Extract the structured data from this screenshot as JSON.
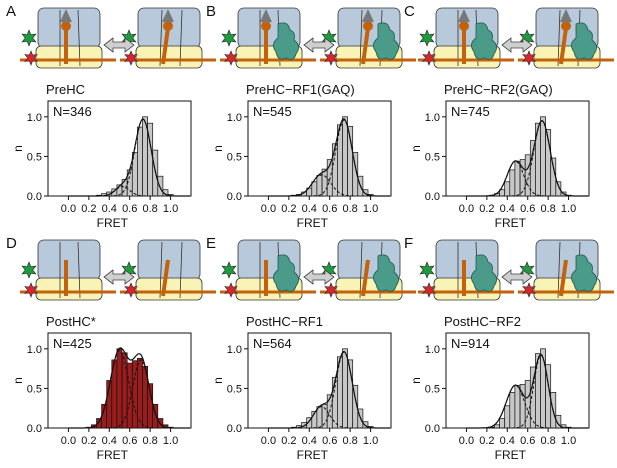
{
  "colors": {
    "subunit_blue": "#b7c9db",
    "subunit_yellow": "#f9f3b5",
    "trna_orange": "#c4620c",
    "peptide_gray": "#777777",
    "factor_teal": "#4a9b8a",
    "star_green": "#1e9a3f",
    "star_red": "#d8262b",
    "bar_gray": "#c8c8c8",
    "bar_red": "#9a1c1c"
  },
  "chart_data": [
    {
      "type": "bar",
      "panel": "A",
      "title": "PreHC",
      "schematic": {
        "peptide": true,
        "factor": false
      },
      "annotation": "N=346",
      "xlabel": "FRET",
      "ylabel": "n",
      "xlim": [
        -0.2,
        1.2
      ],
      "ylim": [
        0,
        1.2
      ],
      "xticks": [
        "0.0",
        "0.2",
        "0.4",
        "0.6",
        "0.8",
        "1.0"
      ],
      "yticks": [
        "0.0",
        "0.5",
        "1.0"
      ],
      "bar_color": "gray",
      "bins": [
        0.1,
        0.15,
        0.2,
        0.25,
        0.3,
        0.35,
        0.4,
        0.45,
        0.5,
        0.55,
        0.6,
        0.65,
        0.7,
        0.75,
        0.8,
        0.85,
        0.9,
        0.95,
        1.0,
        1.05
      ],
      "values": [
        0.0,
        0.0,
        0.0,
        0.0,
        0.01,
        0.03,
        0.05,
        0.09,
        0.14,
        0.21,
        0.33,
        0.55,
        0.87,
        1.0,
        0.92,
        0.58,
        0.25,
        0.08,
        0.02,
        0.0
      ],
      "fits": [
        {
          "mean": 0.53,
          "sd": 0.07,
          "amp": 0.12
        },
        {
          "mean": 0.73,
          "sd": 0.08,
          "amp": 0.97
        }
      ]
    },
    {
      "type": "bar",
      "panel": "B",
      "title": "PreHC−RF1(GAQ)",
      "schematic": {
        "peptide": true,
        "factor": true
      },
      "annotation": "N=545",
      "xlabel": "FRET",
      "ylabel": "n",
      "xlim": [
        -0.2,
        1.2
      ],
      "ylim": [
        0,
        1.2
      ],
      "xticks": [
        "0.0",
        "0.2",
        "0.4",
        "0.6",
        "0.8",
        "1.0"
      ],
      "yticks": [
        "0.0",
        "0.5",
        "1.0"
      ],
      "bar_color": "gray",
      "bins": [
        0.1,
        0.15,
        0.2,
        0.25,
        0.3,
        0.35,
        0.4,
        0.45,
        0.5,
        0.55,
        0.6,
        0.65,
        0.7,
        0.75,
        0.8,
        0.85,
        0.9,
        0.95,
        1.0,
        1.05
      ],
      "values": [
        0.0,
        0.0,
        0.0,
        0.01,
        0.02,
        0.05,
        0.1,
        0.18,
        0.26,
        0.34,
        0.46,
        0.66,
        0.9,
        1.0,
        0.88,
        0.55,
        0.25,
        0.08,
        0.02,
        0.0
      ],
      "fits": [
        {
          "mean": 0.52,
          "sd": 0.09,
          "amp": 0.27
        },
        {
          "mean": 0.74,
          "sd": 0.08,
          "amp": 0.96
        }
      ]
    },
    {
      "type": "bar",
      "panel": "C",
      "title": "PreHC−RF2(GAQ)",
      "schematic": {
        "peptide": true,
        "factor": true
      },
      "annotation": "N=745",
      "xlabel": "FRET",
      "ylabel": "n",
      "xlim": [
        -0.2,
        1.2
      ],
      "ylim": [
        0,
        1.2
      ],
      "xticks": [
        "0.0",
        "0.2",
        "0.4",
        "0.6",
        "0.8",
        "1.0"
      ],
      "yticks": [
        "0.0",
        "0.5",
        "1.0"
      ],
      "bar_color": "gray",
      "bins": [
        0.1,
        0.15,
        0.2,
        0.25,
        0.3,
        0.35,
        0.4,
        0.45,
        0.5,
        0.55,
        0.6,
        0.65,
        0.7,
        0.75,
        0.8,
        0.85,
        0.9,
        0.95,
        1.0,
        1.05
      ],
      "values": [
        0.0,
        0.0,
        0.0,
        0.01,
        0.03,
        0.08,
        0.18,
        0.33,
        0.44,
        0.46,
        0.52,
        0.7,
        0.92,
        1.0,
        0.84,
        0.48,
        0.18,
        0.05,
        0.01,
        0.0
      ],
      "fits": [
        {
          "mean": 0.48,
          "sd": 0.08,
          "amp": 0.44
        },
        {
          "mean": 0.74,
          "sd": 0.08,
          "amp": 0.95
        }
      ]
    },
    {
      "type": "bar",
      "panel": "D",
      "title": "PostHC*",
      "schematic": {
        "peptide": false,
        "factor": false
      },
      "annotation": "N=425",
      "xlabel": "FRET",
      "ylabel": "n",
      "xlim": [
        -0.2,
        1.2
      ],
      "ylim": [
        0,
        1.2
      ],
      "xticks": [
        "0.0",
        "0.2",
        "0.4",
        "0.6",
        "0.8",
        "1.0"
      ],
      "yticks": [
        "0.0",
        "0.5",
        "1.0"
      ],
      "bar_color": "red",
      "bins": [
        0.1,
        0.15,
        0.2,
        0.25,
        0.3,
        0.35,
        0.4,
        0.45,
        0.5,
        0.55,
        0.6,
        0.65,
        0.7,
        0.75,
        0.8,
        0.85,
        0.9,
        0.95,
        1.0,
        1.05
      ],
      "values": [
        0.0,
        0.0,
        0.01,
        0.04,
        0.12,
        0.3,
        0.6,
        0.86,
        1.0,
        0.95,
        0.82,
        0.85,
        0.88,
        0.78,
        0.56,
        0.3,
        0.12,
        0.04,
        0.01,
        0.0
      ],
      "fits": [
        {
          "mean": 0.5,
          "sd": 0.09,
          "amp": 0.98
        },
        {
          "mean": 0.71,
          "sd": 0.08,
          "amp": 0.86
        }
      ]
    },
    {
      "type": "bar",
      "panel": "E",
      "title": "PostHC−RF1",
      "schematic": {
        "peptide": false,
        "factor": true
      },
      "annotation": "N=564",
      "xlabel": "FRET",
      "ylabel": "n",
      "xlim": [
        -0.2,
        1.2
      ],
      "ylim": [
        0,
        1.2
      ],
      "xticks": [
        "0.0",
        "0.2",
        "0.4",
        "0.6",
        "0.8",
        "1.0"
      ],
      "yticks": [
        "0.0",
        "0.5",
        "1.0"
      ],
      "bar_color": "gray",
      "bins": [
        0.1,
        0.15,
        0.2,
        0.25,
        0.3,
        0.35,
        0.4,
        0.45,
        0.5,
        0.55,
        0.6,
        0.65,
        0.7,
        0.75,
        0.8,
        0.85,
        0.9,
        0.95,
        1.0,
        1.05
      ],
      "values": [
        0.0,
        0.0,
        0.0,
        0.01,
        0.03,
        0.07,
        0.13,
        0.21,
        0.27,
        0.3,
        0.42,
        0.64,
        0.9,
        1.0,
        0.86,
        0.54,
        0.24,
        0.08,
        0.02,
        0.0
      ],
      "fits": [
        {
          "mean": 0.52,
          "sd": 0.08,
          "amp": 0.27
        },
        {
          "mean": 0.74,
          "sd": 0.08,
          "amp": 0.96
        }
      ]
    },
    {
      "type": "bar",
      "panel": "F",
      "title": "PostHC−RF2",
      "schematic": {
        "peptide": false,
        "factor": true
      },
      "annotation": "N=914",
      "xlabel": "FRET",
      "ylabel": "n",
      "xlim": [
        -0.2,
        1.2
      ],
      "ylim": [
        0,
        1.2
      ],
      "xticks": [
        "0.0",
        "0.2",
        "0.4",
        "0.6",
        "0.8",
        "1.0"
      ],
      "yticks": [
        "0.0",
        "0.5",
        "1.0"
      ],
      "bar_color": "gray",
      "bins": [
        0.1,
        0.15,
        0.2,
        0.25,
        0.3,
        0.35,
        0.4,
        0.45,
        0.5,
        0.55,
        0.6,
        0.65,
        0.7,
        0.75,
        0.8,
        0.85,
        0.9,
        0.95,
        1.0,
        1.05
      ],
      "values": [
        0.0,
        0.0,
        0.0,
        0.01,
        0.04,
        0.12,
        0.28,
        0.45,
        0.54,
        0.55,
        0.6,
        0.77,
        0.94,
        1.0,
        0.8,
        0.45,
        0.16,
        0.04,
        0.01,
        0.0
      ],
      "fits": [
        {
          "mean": 0.48,
          "sd": 0.09,
          "amp": 0.54
        },
        {
          "mean": 0.73,
          "sd": 0.07,
          "amp": 0.92
        }
      ]
    }
  ]
}
